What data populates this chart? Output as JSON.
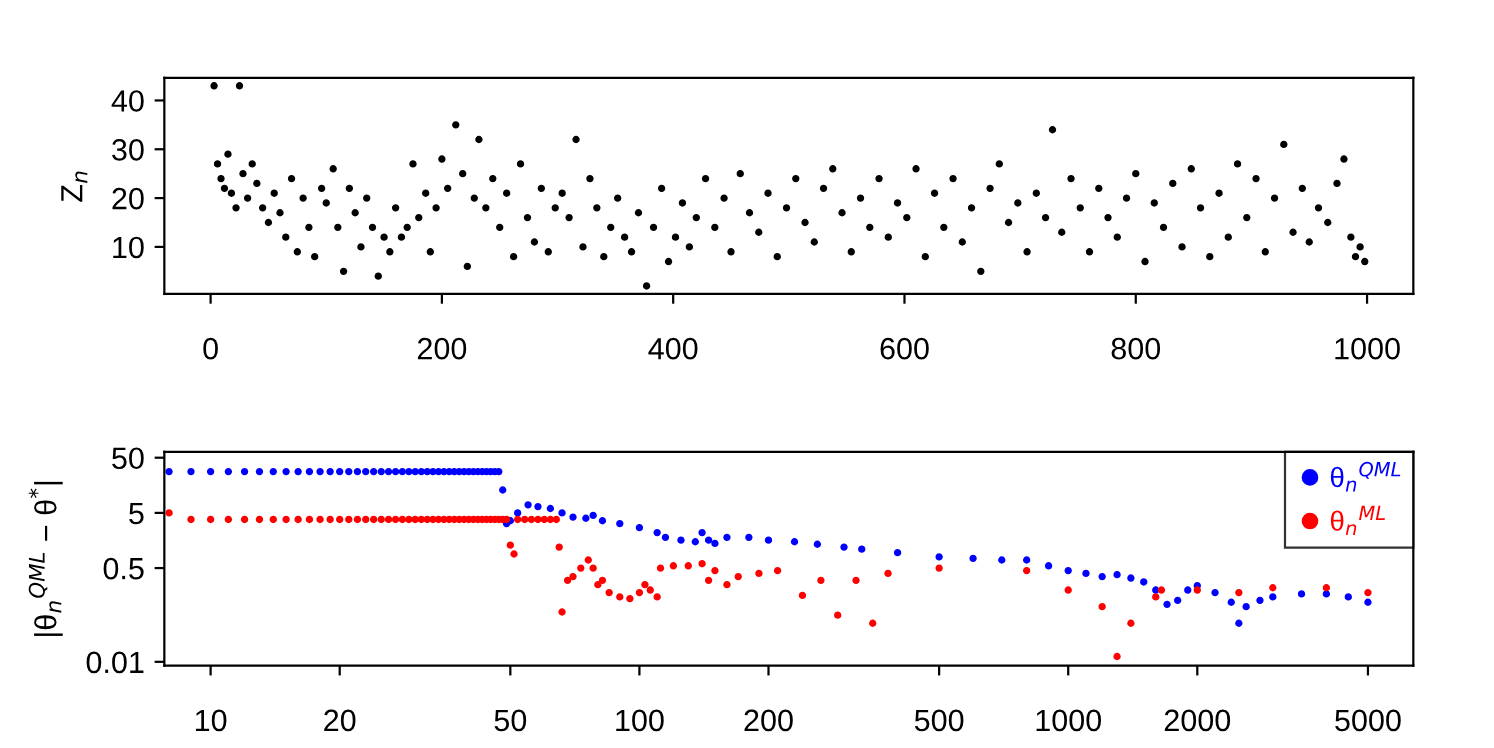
{
  "chart_data": [
    {
      "type": "scatter",
      "ylabel": "Z$_{n}$",
      "xlim": [
        -40,
        1040
      ],
      "ylim": [
        0.36,
        44.64
      ],
      "xticks": [
        0,
        200,
        400,
        600,
        800,
        1000
      ],
      "yticks": [
        10,
        20,
        30,
        40
      ],
      "marker": "circle",
      "grid": false,
      "series": [
        {
          "color": "#000000",
          "x": [
            3,
            6,
            9,
            12,
            15,
            18,
            22,
            25,
            28,
            32,
            36,
            40,
            45,
            50,
            55,
            60,
            65,
            70,
            75,
            80,
            85,
            90,
            96,
            100,
            106,
            110,
            115,
            120,
            125,
            130,
            135,
            140,
            145,
            150,
            155,
            160,
            165,
            170,
            175,
            180,
            186,
            190,
            195,
            200,
            205,
            212,
            218,
            222,
            228,
            232,
            238,
            244,
            250,
            256,
            262,
            268,
            274,
            280,
            286,
            292,
            298,
            304,
            310,
            316,
            322,
            328,
            334,
            340,
            346,
            352,
            358,
            364,
            370,
            377,
            383,
            390,
            396,
            402,
            408,
            414,
            420,
            428,
            436,
            444,
            450,
            458,
            466,
            474,
            482,
            490,
            498,
            506,
            514,
            522,
            530,
            538,
            546,
            554,
            562,
            570,
            578,
            586,
            594,
            602,
            610,
            618,
            626,
            634,
            642,
            650,
            658,
            666,
            674,
            682,
            690,
            698,
            706,
            714,
            722,
            728,
            736,
            744,
            752,
            760,
            768,
            776,
            784,
            792,
            800,
            808,
            816,
            824,
            832,
            840,
            848,
            856,
            864,
            872,
            880,
            888,
            896,
            904,
            912,
            920,
            928,
            936,
            944,
            950,
            958,
            966,
            974,
            980,
            986,
            990,
            994,
            998
          ],
          "values": [
            43,
            27,
            24,
            22,
            29,
            21,
            18,
            43,
            25,
            20,
            27,
            23,
            18,
            15,
            21,
            17,
            12,
            24,
            9,
            20,
            14,
            8,
            22,
            19,
            26,
            14,
            5,
            22,
            17,
            10,
            20,
            14,
            4,
            12,
            9,
            18,
            12,
            14,
            27,
            16,
            21,
            9,
            18,
            28,
            22,
            35,
            25,
            6,
            20,
            32,
            18,
            24,
            14,
            21,
            8,
            27,
            16,
            11,
            22,
            9,
            18,
            21,
            16,
            32,
            10,
            24,
            18,
            8,
            14,
            20,
            12,
            9,
            17,
            2,
            14,
            22,
            7,
            12,
            19,
            10,
            16,
            24,
            14,
            20,
            9,
            25,
            17,
            13,
            21,
            8,
            18,
            24,
            15,
            11,
            22,
            26,
            17,
            9,
            20,
            14,
            24,
            12,
            19,
            16,
            26,
            8,
            21,
            14,
            24,
            11,
            18,
            5,
            22,
            27,
            15,
            19,
            9,
            21,
            16,
            34,
            13,
            24,
            18,
            9,
            22,
            16,
            12,
            20,
            25,
            7,
            19,
            14,
            23,
            10,
            26,
            18,
            8,
            21,
            12,
            27,
            16,
            24,
            9,
            20,
            31,
            13,
            22,
            11,
            18,
            15,
            23,
            28,
            12,
            8,
            10,
            7
          ]
        }
      ]
    },
    {
      "type": "scatter",
      "log": "xy",
      "ylabel": "|θ$_{n}$$^{QML}$ − θ$^{*}$|",
      "xlim": [
        7.8,
        6380
      ],
      "ylim": [
        0.0085,
        64
      ],
      "xticks": [
        10,
        20,
        50,
        100,
        200,
        500,
        1000,
        2000,
        5000
      ],
      "yticks": [
        0.01,
        0.5,
        5,
        50
      ],
      "marker": "circle",
      "grid": false,
      "legend": "top right",
      "series": [
        {
          "name": "θ$_{n}$$^{QML}$",
          "color": "#0000ff",
          "x": [
            8,
            9,
            10,
            11,
            12,
            13,
            14,
            15,
            16,
            17,
            18,
            19,
            20,
            21,
            22,
            23,
            24,
            25,
            26,
            27,
            28,
            29,
            30,
            31,
            32,
            33,
            34,
            35,
            36,
            37,
            38,
            39,
            40,
            41,
            42,
            43,
            44,
            45,
            46,
            47,
            48,
            49,
            50,
            52,
            55,
            58,
            62,
            66,
            70,
            75,
            78,
            82,
            90,
            100,
            110,
            115,
            125,
            135,
            140,
            145,
            150,
            160,
            180,
            200,
            230,
            260,
            300,
            330,
            400,
            500,
            600,
            700,
            800,
            900,
            1000,
            1100,
            1200,
            1300,
            1400,
            1500,
            1600,
            1700,
            1800,
            1900,
            2000,
            2200,
            2400,
            2500,
            2600,
            2800,
            3000,
            3500,
            4000,
            4500,
            5000
          ],
          "values": [
            28,
            28,
            28,
            28,
            28,
            28,
            28,
            28,
            28,
            28,
            28,
            28,
            28,
            28,
            28,
            28,
            28,
            28,
            28,
            28,
            28,
            28,
            28,
            28,
            28,
            28,
            28,
            28,
            28,
            28,
            28,
            28,
            28,
            28,
            28,
            28,
            28,
            28,
            28,
            28,
            13,
            3.2,
            3.6,
            5,
            7,
            6.5,
            6,
            5,
            4.2,
            4,
            4.5,
            3.6,
            3.2,
            2.7,
            2.2,
            1.8,
            1.6,
            1.5,
            2.2,
            1.6,
            1.4,
            1.8,
            1.8,
            1.6,
            1.5,
            1.35,
            1.2,
            1.1,
            0.95,
            0.8,
            0.75,
            0.7,
            0.7,
            0.55,
            0.45,
            0.4,
            0.35,
            0.38,
            0.33,
            0.28,
            0.2,
            0.11,
            0.13,
            0.2,
            0.24,
            0.18,
            0.12,
            0.05,
            0.1,
            0.13,
            0.15,
            0.17,
            0.17,
            0.15,
            0.12
          ]
        },
        {
          "name": "θ$_{n}$$^{ML}$",
          "color": "#ff0000",
          "x": [
            8,
            9,
            10,
            11,
            12,
            13,
            14,
            15,
            16,
            17,
            18,
            19,
            20,
            21,
            22,
            23,
            24,
            25,
            26,
            27,
            28,
            29,
            30,
            31,
            32,
            33,
            34,
            35,
            36,
            37,
            38,
            39,
            40,
            41,
            42,
            43,
            44,
            45,
            46,
            47,
            48,
            49,
            50,
            51,
            52,
            54,
            56,
            58,
            60,
            62,
            64,
            65,
            66,
            68,
            70,
            73,
            76,
            78,
            80,
            82,
            85,
            90,
            95,
            100,
            103,
            106,
            110,
            112,
            120,
            130,
            140,
            145,
            150,
            160,
            170,
            190,
            210,
            240,
            265,
            290,
            320,
            350,
            380,
            500,
            800,
            1000,
            1200,
            1300,
            1400,
            1600,
            1650,
            2000,
            2500,
            3000,
            4000,
            5000
          ],
          "values": [
            5,
            3.8,
            3.8,
            3.8,
            3.8,
            3.8,
            3.8,
            3.8,
            3.8,
            3.8,
            3.8,
            3.8,
            3.8,
            3.8,
            3.8,
            3.8,
            3.8,
            3.8,
            3.8,
            3.8,
            3.8,
            3.8,
            3.8,
            3.8,
            3.8,
            3.8,
            3.8,
            3.8,
            3.8,
            3.8,
            3.8,
            3.8,
            3.8,
            3.8,
            3.8,
            3.8,
            3.8,
            3.8,
            3.8,
            3.8,
            3.8,
            3.8,
            1.3,
            0.9,
            3.8,
            3.8,
            3.8,
            3.8,
            3.8,
            3.8,
            3.8,
            1.2,
            0.08,
            0.3,
            0.35,
            0.5,
            0.7,
            0.5,
            0.25,
            0.3,
            0.18,
            0.15,
            0.14,
            0.18,
            0.25,
            0.2,
            0.15,
            0.5,
            0.55,
            0.55,
            0.6,
            0.3,
            0.45,
            0.25,
            0.35,
            0.4,
            0.45,
            0.16,
            0.3,
            0.07,
            0.3,
            0.05,
            0.4,
            0.5,
            0.45,
            0.2,
            0.1,
            0.0125,
            0.05,
            0.15,
            0.2,
            0.2,
            0.18,
            0.22,
            0.22,
            0.18
          ]
        }
      ]
    }
  ]
}
